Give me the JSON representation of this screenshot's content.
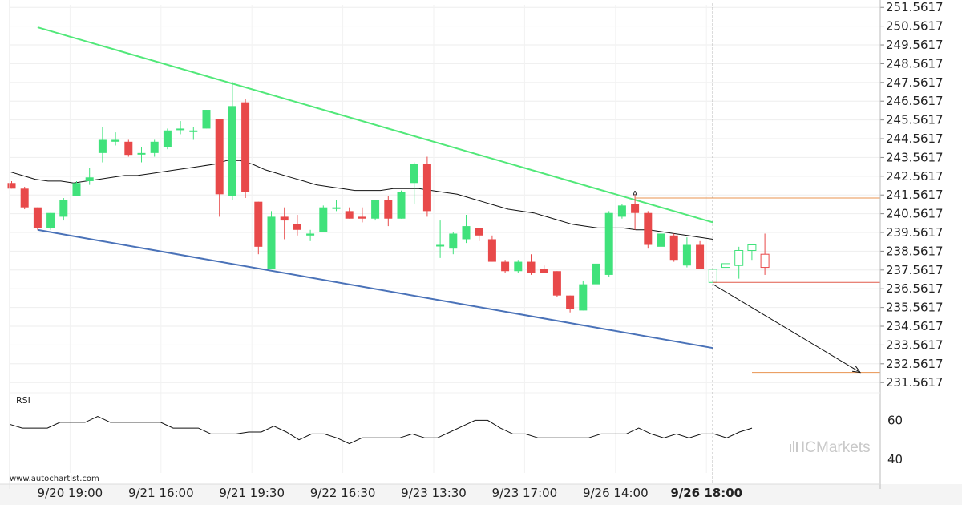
{
  "chart_data": {
    "type": "candlestick",
    "price_axis": {
      "ticks": [
        "251.5617",
        "250.5617",
        "249.5617",
        "248.5617",
        "247.5617",
        "246.5617",
        "245.5617",
        "244.5617",
        "243.5617",
        "242.5617",
        "241.5617",
        "240.5617",
        "239.5617",
        "238.5617",
        "237.5617",
        "236.5617",
        "235.5617",
        "234.5617",
        "233.5617",
        "232.5617",
        "231.5617"
      ],
      "ylim": [
        231.1,
        251.7
      ]
    },
    "time_axis": {
      "labels": [
        "9/20 19:00",
        "9/21 16:00",
        "9/21 19:30",
        "9/22 16:30",
        "9/23 13:30",
        "9/23 17:00",
        "9/26 14:00",
        "9/26 18:00"
      ],
      "label_bar_index": [
        4.5,
        11.5,
        18.5,
        25.5,
        32.5,
        39.5,
        46.5,
        53.5
      ],
      "highlight_label": "9/26 18:00"
    },
    "candles": [
      {
        "o": 242.2,
        "h": 242.3,
        "l": 241.9,
        "c": 241.9
      },
      {
        "o": 241.9,
        "h": 242.0,
        "l": 240.8,
        "c": 240.9
      },
      {
        "o": 240.9,
        "h": 240.9,
        "l": 239.7,
        "c": 239.8
      },
      {
        "o": 239.8,
        "h": 240.6,
        "l": 239.7,
        "c": 240.6
      },
      {
        "o": 240.4,
        "h": 241.4,
        "l": 240.2,
        "c": 241.3
      },
      {
        "o": 241.5,
        "h": 242.3,
        "l": 241.5,
        "c": 242.2
      },
      {
        "o": 242.3,
        "h": 243.0,
        "l": 242.1,
        "c": 242.5
      },
      {
        "o": 243.8,
        "h": 245.2,
        "l": 243.3,
        "c": 244.5
      },
      {
        "o": 244.4,
        "h": 244.9,
        "l": 244.2,
        "c": 244.5
      },
      {
        "o": 244.4,
        "h": 244.5,
        "l": 243.6,
        "c": 243.7
      },
      {
        "o": 243.8,
        "h": 244.1,
        "l": 243.3,
        "c": 243.8
      },
      {
        "o": 243.8,
        "h": 244.5,
        "l": 243.6,
        "c": 244.4
      },
      {
        "o": 244.1,
        "h": 245.1,
        "l": 244.0,
        "c": 245.0
      },
      {
        "o": 245.1,
        "h": 245.5,
        "l": 244.8,
        "c": 245.1
      },
      {
        "o": 245.0,
        "h": 245.2,
        "l": 244.5,
        "c": 245.0
      },
      {
        "o": 245.1,
        "h": 246.1,
        "l": 245.1,
        "c": 246.1
      },
      {
        "o": 245.6,
        "h": 245.6,
        "l": 240.4,
        "c": 241.6
      },
      {
        "o": 241.5,
        "h": 247.6,
        "l": 241.3,
        "c": 246.3
      },
      {
        "o": 246.5,
        "h": 246.7,
        "l": 241.4,
        "c": 241.7
      },
      {
        "o": 241.2,
        "h": 241.2,
        "l": 238.4,
        "c": 238.8
      },
      {
        "o": 237.6,
        "h": 240.7,
        "l": 237.6,
        "c": 240.4
      },
      {
        "o": 240.4,
        "h": 240.9,
        "l": 239.2,
        "c": 240.2
      },
      {
        "o": 240.0,
        "h": 240.5,
        "l": 239.4,
        "c": 239.7
      },
      {
        "o": 239.4,
        "h": 239.7,
        "l": 239.1,
        "c": 239.5
      },
      {
        "o": 239.6,
        "h": 241.0,
        "l": 239.6,
        "c": 240.9
      },
      {
        "o": 240.9,
        "h": 241.3,
        "l": 240.7,
        "c": 240.9
      },
      {
        "o": 240.7,
        "h": 240.9,
        "l": 240.3,
        "c": 240.3
      },
      {
        "o": 240.4,
        "h": 240.9,
        "l": 240.1,
        "c": 240.3
      },
      {
        "o": 240.3,
        "h": 241.3,
        "l": 240.2,
        "c": 241.3
      },
      {
        "o": 241.3,
        "h": 241.5,
        "l": 239.9,
        "c": 240.3
      },
      {
        "o": 240.3,
        "h": 241.8,
        "l": 240.3,
        "c": 241.7
      },
      {
        "o": 242.2,
        "h": 243.3,
        "l": 241.1,
        "c": 243.2
      },
      {
        "o": 243.2,
        "h": 243.6,
        "l": 240.4,
        "c": 240.7
      },
      {
        "o": 238.9,
        "h": 240.2,
        "l": 238.2,
        "c": 238.9
      },
      {
        "o": 238.7,
        "h": 239.6,
        "l": 238.4,
        "c": 239.5
      },
      {
        "o": 239.2,
        "h": 240.5,
        "l": 239.0,
        "c": 239.9
      },
      {
        "o": 239.8,
        "h": 239.8,
        "l": 239.1,
        "c": 239.4
      },
      {
        "o": 239.2,
        "h": 239.4,
        "l": 238.0,
        "c": 238.0
      },
      {
        "o": 238.0,
        "h": 238.1,
        "l": 237.4,
        "c": 237.5
      },
      {
        "o": 237.5,
        "h": 238.1,
        "l": 237.4,
        "c": 238.0
      },
      {
        "o": 238.0,
        "h": 238.4,
        "l": 237.3,
        "c": 237.4
      },
      {
        "o": 237.6,
        "h": 237.8,
        "l": 237.4,
        "c": 237.4
      },
      {
        "o": 237.5,
        "h": 237.5,
        "l": 236.1,
        "c": 236.2
      },
      {
        "o": 236.2,
        "h": 236.2,
        "l": 235.3,
        "c": 235.5
      },
      {
        "o": 235.4,
        "h": 237.0,
        "l": 235.4,
        "c": 236.8
      },
      {
        "o": 236.8,
        "h": 238.1,
        "l": 236.6,
        "c": 237.9
      },
      {
        "o": 237.3,
        "h": 240.7,
        "l": 237.2,
        "c": 240.6
      },
      {
        "o": 240.4,
        "h": 241.1,
        "l": 240.3,
        "c": 241.0
      },
      {
        "o": 241.1,
        "h": 241.6,
        "l": 239.7,
        "c": 240.6
      },
      {
        "o": 240.6,
        "h": 240.7,
        "l": 238.7,
        "c": 238.9
      },
      {
        "o": 238.8,
        "h": 239.5,
        "l": 238.7,
        "c": 239.5
      },
      {
        "o": 239.4,
        "h": 239.5,
        "l": 238.0,
        "c": 238.1
      },
      {
        "o": 237.8,
        "h": 239.3,
        "l": 237.7,
        "c": 238.9
      },
      {
        "o": 238.9,
        "h": 239.1,
        "l": 237.6,
        "c": 237.6
      }
    ],
    "forecast_candles": [
      {
        "o": 236.9,
        "h": 237.6,
        "l": 236.9,
        "c": 237.6
      },
      {
        "o": 237.7,
        "h": 238.3,
        "l": 237.1,
        "c": 237.9
      },
      {
        "o": 237.8,
        "h": 238.8,
        "l": 237.1,
        "c": 238.6
      },
      {
        "o": 238.6,
        "h": 238.9,
        "l": 238.1,
        "c": 238.9
      },
      {
        "o": 238.4,
        "h": 239.5,
        "l": 237.3,
        "c": 237.7
      }
    ],
    "moving_average": [
      242.8,
      242.6,
      242.4,
      242.3,
      242.3,
      242.2,
      242.3,
      242.4,
      242.5,
      242.6,
      242.6,
      242.7,
      242.8,
      242.9,
      243.0,
      243.1,
      243.2,
      243.4,
      243.4,
      243.2,
      242.9,
      242.7,
      242.5,
      242.3,
      242.1,
      242.0,
      241.9,
      241.8,
      241.8,
      241.8,
      241.9,
      241.9,
      241.9,
      241.8,
      241.7,
      241.6,
      241.4,
      241.2,
      241.0,
      240.8,
      240.7,
      240.6,
      240.4,
      240.2,
      240.0,
      239.9,
      239.8,
      239.8,
      239.8,
      239.7,
      239.7,
      239.6,
      239.5,
      239.4,
      239.3,
      239.2
    ],
    "upper_trendline": {
      "from": [
        2,
        250.5
      ],
      "to": [
        54,
        240.1
      ],
      "color": "#51e879"
    },
    "lower_trendline": {
      "from": [
        2,
        239.7
      ],
      "to": [
        54,
        233.4
      ],
      "color": "#4a72b8"
    },
    "resistance_level": {
      "value": 241.4,
      "marker": "A",
      "from_index": 48,
      "color": "#e8934f"
    },
    "current_level": {
      "value": 236.9,
      "from_index": 54,
      "color": "#e05a4a"
    },
    "target_level": {
      "value": 232.1,
      "from_index": 58,
      "color": "#e8934f"
    },
    "forecast_arrow": {
      "from": [
        54,
        236.8
      ],
      "to": [
        58,
        232.1
      ]
    },
    "now_index": 54,
    "rsi": {
      "label": "RSI",
      "ticks": [
        "60",
        "40"
      ],
      "ylim": [
        33,
        68
      ],
      "values": [
        58,
        56,
        56,
        56,
        59,
        59,
        59,
        62,
        59,
        59,
        59,
        59,
        59,
        56,
        56,
        56,
        53,
        53,
        53,
        54,
        54,
        57,
        54,
        50,
        53,
        53,
        51,
        48,
        51,
        51,
        51,
        51,
        53,
        51,
        51,
        54,
        57,
        60,
        60,
        56,
        53,
        53,
        51,
        51,
        51,
        51,
        51,
        53,
        53,
        53,
        56,
        53,
        51,
        53,
        51,
        53,
        53,
        51,
        54,
        56
      ]
    },
    "candle_colors": {
      "up": "#40e27b",
      "down": "#e8494a"
    },
    "grid": true
  },
  "watermark": {
    "site": "www.autochartist.com",
    "logo": "ICMarkets"
  }
}
